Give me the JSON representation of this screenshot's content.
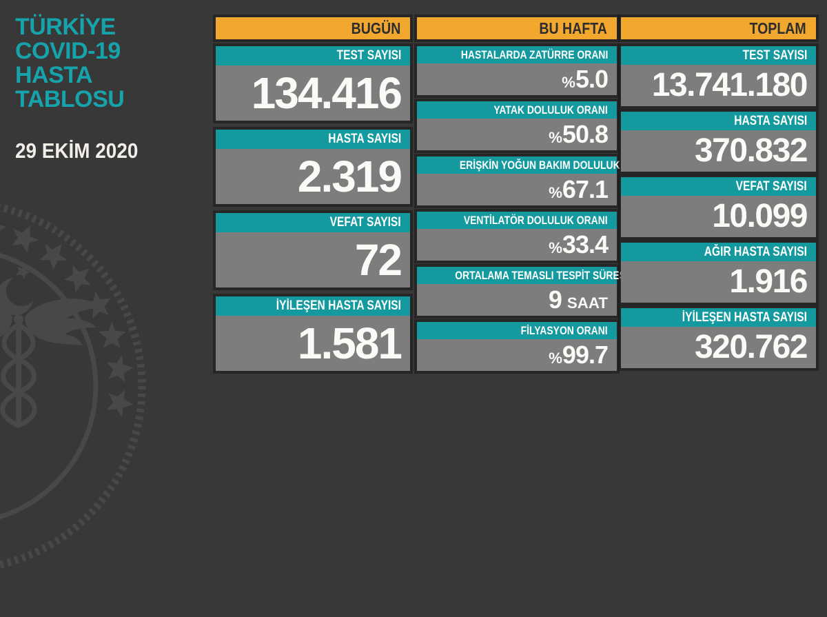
{
  "title": {
    "lines": [
      "TÜRKİYE",
      "COVID-19",
      "HASTA",
      "TABLOSU"
    ],
    "date": "29 EKİM 2020"
  },
  "columns": [
    {
      "id": "bugun",
      "header": "BUGÜN",
      "stats": [
        {
          "label": "TEST SAYISI",
          "value": "134.416"
        },
        {
          "label": "HASTA SAYISI",
          "value": "2.319"
        },
        {
          "label": "VEFAT SAYISI",
          "value": "72"
        },
        {
          "label": "İYİLEŞEN HASTA SAYISI",
          "value": "1.581"
        }
      ]
    },
    {
      "id": "bu-hafta",
      "header": "BU HAFTA",
      "stats": [
        {
          "label": "HASTALARDA ZATÜRRE ORANI",
          "prefix": "%",
          "value": "5.0"
        },
        {
          "label": "YATAK DOLULUK ORANI",
          "prefix": "%",
          "value": "50.8"
        },
        {
          "label": "ERİŞKİN YOĞUN BAKIM DOLULUK ORANI",
          "prefix": "%",
          "value": "67.1"
        },
        {
          "label": "VENTİLATÖR DOLULUK ORANI",
          "prefix": "%",
          "value": "33.4"
        },
        {
          "label": "ORTALAMA TEMASLI TESPİT SÜRESİ",
          "value": "9",
          "suffix": "SAAT"
        },
        {
          "label": "FİLYASYON ORANI",
          "prefix": "%",
          "value": "99.7"
        }
      ]
    },
    {
      "id": "toplam",
      "header": "TOPLAM",
      "stats": [
        {
          "label": "TEST SAYISI",
          "value": "13.741.180"
        },
        {
          "label": "HASTA SAYISI",
          "value": "370.832"
        },
        {
          "label": "VEFAT SAYISI",
          "value": "10.099"
        },
        {
          "label": "AĞIR HASTA SAYISI",
          "value": "1.916"
        },
        {
          "label": "İYİLEŞEN HASTA SAYISI",
          "value": "320.762"
        }
      ]
    }
  ],
  "watermark": {
    "icon": "crescent-star-caduceus-emblem"
  },
  "colors": {
    "background": "#383838",
    "panel_gray": "#7d7d7d",
    "teal": "#13999e",
    "title_teal": "#16a3ab",
    "orange": "#f2a72f",
    "header_text": "#2e2e2e",
    "value_text": "#fbfaf7",
    "watermark": "#4c4c4c"
  }
}
